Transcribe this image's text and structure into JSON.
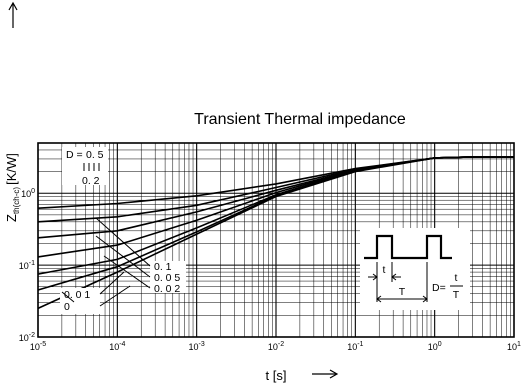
{
  "chart_data": {
    "type": "line",
    "title": "Transient Thermal impedance",
    "xlabel": "t [s]",
    "ylabel": "Z",
    "ylabel_subscript": "th(ch-c)",
    "ylabel_unit": "[K/W]",
    "x_scale": "log",
    "y_scale": "log",
    "xlim": [
      1e-05,
      10
    ],
    "ylim": [
      0.01,
      5
    ],
    "grid": true,
    "x_ticks": [
      {
        "label": "10",
        "exp": "-5"
      },
      {
        "label": "10",
        "exp": "-4"
      },
      {
        "label": "10",
        "exp": "-3"
      },
      {
        "label": "10",
        "exp": "-2"
      },
      {
        "label": "10",
        "exp": "-1"
      },
      {
        "label": "10",
        "exp": "0"
      },
      {
        "label": "10",
        "exp": "1"
      }
    ],
    "y_ticks": [
      {
        "label": "10",
        "exp": "-2"
      },
      {
        "label": "10",
        "exp": "-1"
      },
      {
        "label": "10",
        "exp": "0"
      }
    ],
    "series": [
      {
        "name": "0.5",
        "x": [
          1e-05,
          0.0001,
          0.001,
          0.01,
          0.1,
          1,
          3,
          10
        ],
        "values": [
          0.62,
          0.72,
          0.92,
          1.35,
          2.2,
          3.1,
          3.2,
          3.2
        ]
      },
      {
        "name": "0.2",
        "x": [
          1e-05,
          0.0001,
          0.001,
          0.01,
          0.1,
          1,
          3,
          10
        ],
        "values": [
          0.4,
          0.47,
          0.68,
          1.2,
          2.15,
          3.1,
          3.2,
          3.2
        ]
      },
      {
        "name": "0.1",
        "x": [
          1e-05,
          0.0001,
          0.001,
          0.01,
          0.1,
          1,
          3,
          10
        ],
        "values": [
          0.24,
          0.3,
          0.55,
          1.1,
          2.1,
          3.1,
          3.2,
          3.2
        ]
      },
      {
        "name": "0.05",
        "x": [
          1e-05,
          0.0001,
          0.001,
          0.01,
          0.1,
          1,
          3,
          10
        ],
        "values": [
          0.13,
          0.19,
          0.42,
          1.02,
          2.1,
          3.1,
          3.2,
          3.2
        ]
      },
      {
        "name": "0.02",
        "x": [
          1e-05,
          0.0001,
          0.001,
          0.01,
          0.1,
          1,
          3,
          10
        ],
        "values": [
          0.075,
          0.12,
          0.33,
          0.95,
          2.08,
          3.1,
          3.2,
          3.2
        ]
      },
      {
        "name": "0.01",
        "x": [
          1e-05,
          0.0001,
          0.001,
          0.01,
          0.1,
          1,
          3,
          10
        ],
        "values": [
          0.045,
          0.095,
          0.29,
          0.92,
          2.05,
          3.1,
          3.2,
          3.2
        ]
      },
      {
        "name": "0",
        "x": [
          1e-05,
          0.0001,
          0.001,
          0.01,
          0.1,
          1,
          3,
          10
        ],
        "values": [
          0.025,
          0.08,
          0.27,
          0.9,
          2.0,
          3.1,
          3.2,
          3.2
        ]
      }
    ],
    "annotations": {
      "d_prefix": "D =",
      "labels": [
        "0. 5",
        "0. 2",
        "0. 1",
        "0. 0 5",
        "0. 0 2",
        "0. 0 1",
        "0"
      ],
      "pulse_t": "t",
      "pulse_T": "T",
      "duty_lhs": "D=",
      "duty_num": "t",
      "duty_den": "T"
    }
  }
}
